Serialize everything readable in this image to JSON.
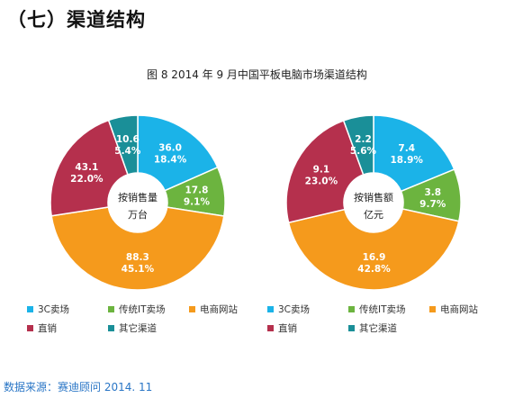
{
  "heading": "（七）渠道结构",
  "figure_title": "图 8   2014 年 9 月中国平板电脑市场渠道结构",
  "source": "数据来源：赛迪顾问 2014. 11",
  "colors": {
    "3C卖场": "#1bb3e8",
    "传统IT卖场": "#6cb43f",
    "电商网站": "#f59a1c",
    "直销": "#b5304d",
    "其它渠道": "#1a8f98"
  },
  "chart_data": [
    {
      "type": "pie",
      "center_label": [
        "按销售量",
        "万台"
      ],
      "slices": [
        {
          "name": "3C卖场",
          "value": 36.0,
          "value_label": "36.0",
          "percent_label": "18.4%",
          "color": "#1bb3e8"
        },
        {
          "name": "传统IT卖场",
          "value": 17.8,
          "value_label": "17.8",
          "percent_label": "9.1%",
          "color": "#6cb43f"
        },
        {
          "name": "电商网站",
          "value": 88.3,
          "value_label": "88.3",
          "percent_label": "45.1%",
          "color": "#f59a1c"
        },
        {
          "name": "直销",
          "value": 43.1,
          "value_label": "43.1",
          "percent_label": "22.0%",
          "color": "#b5304d"
        },
        {
          "name": "其它渠道",
          "value": 10.6,
          "value_label": "10.6",
          "percent_label": "5.4%",
          "color": "#1a8f98"
        }
      ],
      "legend": [
        [
          "3C卖场",
          "传统IT卖场",
          "电商网站"
        ],
        [
          "直销",
          "其它渠道"
        ]
      ]
    },
    {
      "type": "pie",
      "center_label": [
        "按销售额",
        "亿元"
      ],
      "slices": [
        {
          "name": "3C卖场",
          "value": 7.4,
          "value_label": "7.4",
          "percent_label": "18.9%",
          "color": "#1bb3e8"
        },
        {
          "name": "传统IT卖场",
          "value": 3.8,
          "value_label": "3.8",
          "percent_label": "9.7%",
          "color": "#6cb43f"
        },
        {
          "name": "电商网站",
          "value": 16.9,
          "value_label": "16.9",
          "percent_label": "42.8%",
          "color": "#f59a1c"
        },
        {
          "name": "直销",
          "value": 9.1,
          "value_label": "9.1",
          "percent_label": "23.0%",
          "color": "#b5304d"
        },
        {
          "name": "其它渠道",
          "value": 2.2,
          "value_label": "2.2",
          "percent_label": "5.6%",
          "color": "#1a8f98"
        }
      ],
      "legend": [
        [
          "3C卖场",
          "传统IT卖场",
          "电商网站"
        ],
        [
          "直销",
          "其它渠道"
        ]
      ]
    }
  ]
}
